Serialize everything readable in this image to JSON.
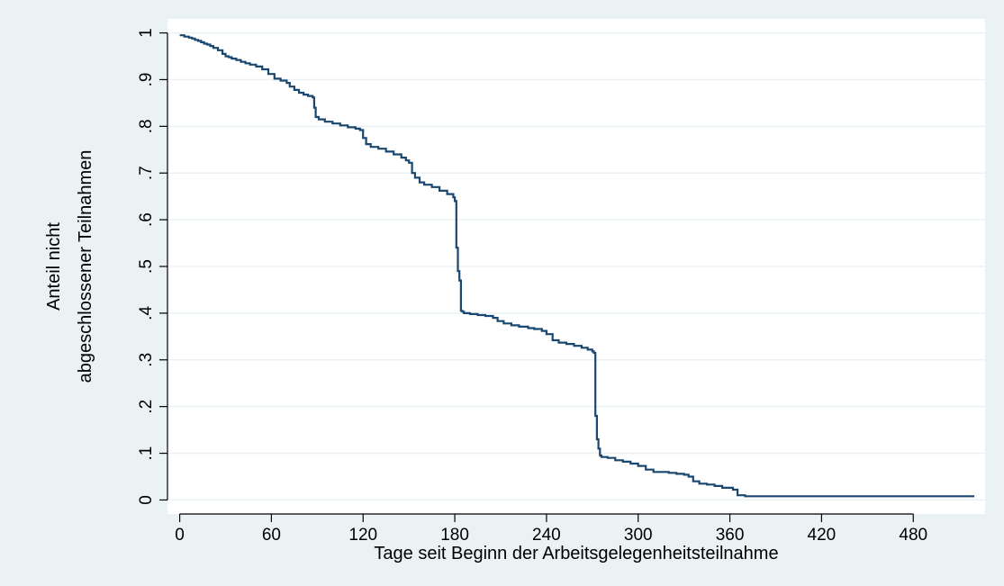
{
  "chart_data": {
    "type": "line",
    "xlabel": "Tage seit Beginn der Arbeitsgelegenheitsteilnahme",
    "ylabel": [
      "Anteil nicht",
      "abgeschlossener Teilnahmen"
    ],
    "xlim": [
      -8,
      527
    ],
    "ylim": [
      -0.03,
      1.03
    ],
    "x_ticks": [
      0,
      60,
      120,
      180,
      240,
      300,
      360,
      420,
      480
    ],
    "x_tick_labels": [
      "0",
      "60",
      "120",
      "180",
      "240",
      "300",
      "360",
      "420",
      "480"
    ],
    "y_ticks": [
      0,
      0.1,
      0.2,
      0.3,
      0.4,
      0.5,
      0.6,
      0.7,
      0.8,
      0.9,
      1
    ],
    "y_tick_labels": [
      "0",
      ".1",
      ".2",
      ".3",
      ".4",
      ".5",
      ".6",
      ".7",
      ".8",
      ".9",
      "1"
    ],
    "grid": true,
    "line_style": "step",
    "colors": {
      "line": "#1a476f",
      "background": "#eaf2f3",
      "plot_area": "#ffffff",
      "grid": "#eaf2f3"
    },
    "series": [
      {
        "x": [
          0,
          3,
          6,
          8,
          10,
          12,
          14,
          16,
          18,
          20,
          22,
          25,
          28,
          30,
          32,
          34,
          37,
          40,
          43,
          46,
          50,
          54,
          58,
          62,
          66,
          70,
          72,
          75,
          78,
          81,
          84,
          87,
          88,
          89,
          91,
          95,
          100,
          105,
          110,
          115,
          118,
          120,
          122,
          125,
          130,
          135,
          140,
          145,
          148,
          150,
          152,
          154,
          157,
          160,
          165,
          170,
          175,
          179,
          180,
          181,
          182,
          183,
          184,
          185,
          186,
          190,
          195,
          200,
          205,
          208,
          212,
          217,
          222,
          228,
          232,
          237,
          240,
          244,
          248,
          253,
          258,
          263,
          267,
          270,
          271,
          272,
          273,
          274,
          275,
          276,
          280,
          285,
          290,
          295,
          300,
          305,
          310,
          315,
          320,
          325,
          330,
          333,
          336,
          340,
          345,
          350,
          355,
          362,
          365,
          370,
          400,
          450,
          500,
          520
        ],
        "y": [
          0.995,
          0.992,
          0.99,
          0.988,
          0.985,
          0.983,
          0.98,
          0.977,
          0.975,
          0.972,
          0.968,
          0.963,
          0.955,
          0.95,
          0.948,
          0.945,
          0.942,
          0.938,
          0.935,
          0.932,
          0.928,
          0.922,
          0.912,
          0.902,
          0.898,
          0.893,
          0.885,
          0.878,
          0.872,
          0.868,
          0.865,
          0.862,
          0.84,
          0.82,
          0.815,
          0.81,
          0.806,
          0.802,
          0.798,
          0.795,
          0.792,
          0.775,
          0.762,
          0.756,
          0.752,
          0.746,
          0.74,
          0.733,
          0.727,
          0.722,
          0.7,
          0.69,
          0.68,
          0.675,
          0.67,
          0.662,
          0.655,
          0.648,
          0.64,
          0.54,
          0.49,
          0.47,
          0.405,
          0.403,
          0.4,
          0.398,
          0.396,
          0.394,
          0.39,
          0.383,
          0.378,
          0.374,
          0.371,
          0.368,
          0.366,
          0.362,
          0.355,
          0.342,
          0.337,
          0.334,
          0.33,
          0.326,
          0.322,
          0.318,
          0.315,
          0.18,
          0.13,
          0.11,
          0.095,
          0.092,
          0.09,
          0.085,
          0.082,
          0.078,
          0.073,
          0.065,
          0.06,
          0.06,
          0.058,
          0.056,
          0.054,
          0.05,
          0.04,
          0.035,
          0.033,
          0.03,
          0.026,
          0.022,
          0.01,
          0.008,
          0.008,
          0.008,
          0.008,
          0.008
        ]
      }
    ]
  }
}
